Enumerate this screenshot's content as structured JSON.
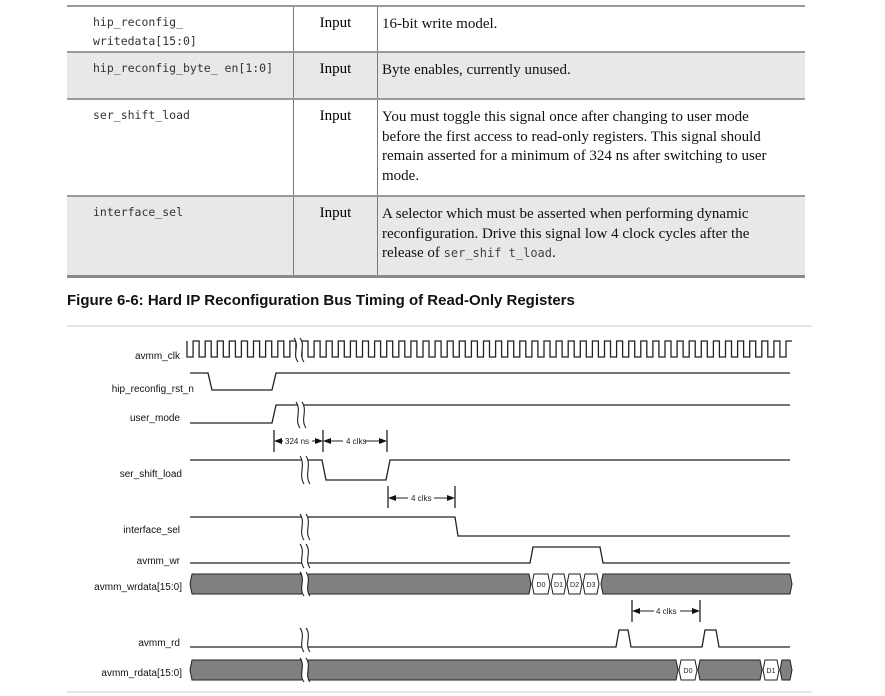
{
  "table": {
    "rows": [
      {
        "signal": "hip_reconfig_ writedata[15:0]",
        "direction": "Input",
        "description": "16-bit write model."
      },
      {
        "signal": "hip_reconfig_byte_ en[1:0]",
        "direction": "Input",
        "description": "Byte enables, currently unused."
      },
      {
        "signal": "ser_shift_load",
        "direction": "Input",
        "description": "You must toggle this signal once after changing to user mode before the first access to read-only registers. This signal should remain asserted for a minimum of 324 ns after switching to user mode."
      },
      {
        "signal": "interface_sel",
        "direction": "Input",
        "description_pre": "A selector which must be asserted when performing dynamic reconfiguration. Drive this signal low 4 clock cycles after the release of ",
        "description_code": "ser_shif t_load",
        "description_post": "."
      }
    ]
  },
  "figure": {
    "caption": "Figure 6-6: Hard IP Reconfiguration Bus Timing of Read-Only Registers",
    "signals": [
      "avmm_clk",
      "hip_reconfig_rst_n",
      "user_mode",
      "ser_shift_load",
      "interface_sel",
      "avmm_wr",
      "avmm_wrdata[15:0]",
      "avmm_rd",
      "avmm_rdata[15:0]"
    ],
    "annotations": {
      "t1": "324 ns",
      "t2": "4 clks",
      "t3": "4 clks",
      "t4": "4 clks"
    },
    "wrdata": [
      "D0",
      "D1",
      "D2",
      "D3"
    ],
    "rdata": [
      "D0",
      "D1"
    ],
    "bus_color": "#808080"
  }
}
